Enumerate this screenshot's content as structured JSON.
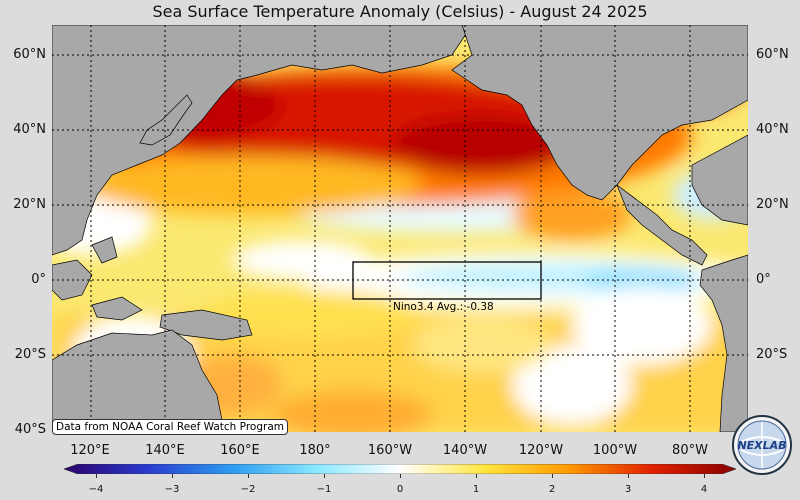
{
  "title": "Sea Surface Temperature Anomaly (Celsius) - August 24 2025",
  "map": {
    "lat_labels": [
      "60°N",
      "40°N",
      "20°N",
      "0°",
      "20°S",
      "40°S"
    ],
    "lon_labels": [
      "120°E",
      "140°E",
      "160°E",
      "180°",
      "160°W",
      "140°W",
      "120°W",
      "100°W",
      "80°W"
    ],
    "lon_range": [
      "110°E",
      "75°W"
    ],
    "lat_range": [
      "40°S",
      "68°N"
    ],
    "land_color": "#a8a8a8",
    "gridlines": "dotted"
  },
  "nino_box": {
    "label": "Nino3.4 Avg.: -0.38",
    "region": "5°S–5°N, 170°W–120°W"
  },
  "credit": "Data from NOAA Coral Reef Watch Program",
  "colorbar": {
    "ticks": [
      "−4",
      "−3",
      "−2",
      "−1",
      "0",
      "1",
      "2",
      "3",
      "4"
    ],
    "min": -4,
    "max": 4,
    "colors": [
      "#2a006a",
      "#2a3ccf",
      "#2d9cf0",
      "#8ae8ff",
      "#ffffff",
      "#ffe640",
      "#ff9a00",
      "#e02000",
      "#8a0000"
    ]
  },
  "logo": {
    "text": "NEXLAB"
  }
}
